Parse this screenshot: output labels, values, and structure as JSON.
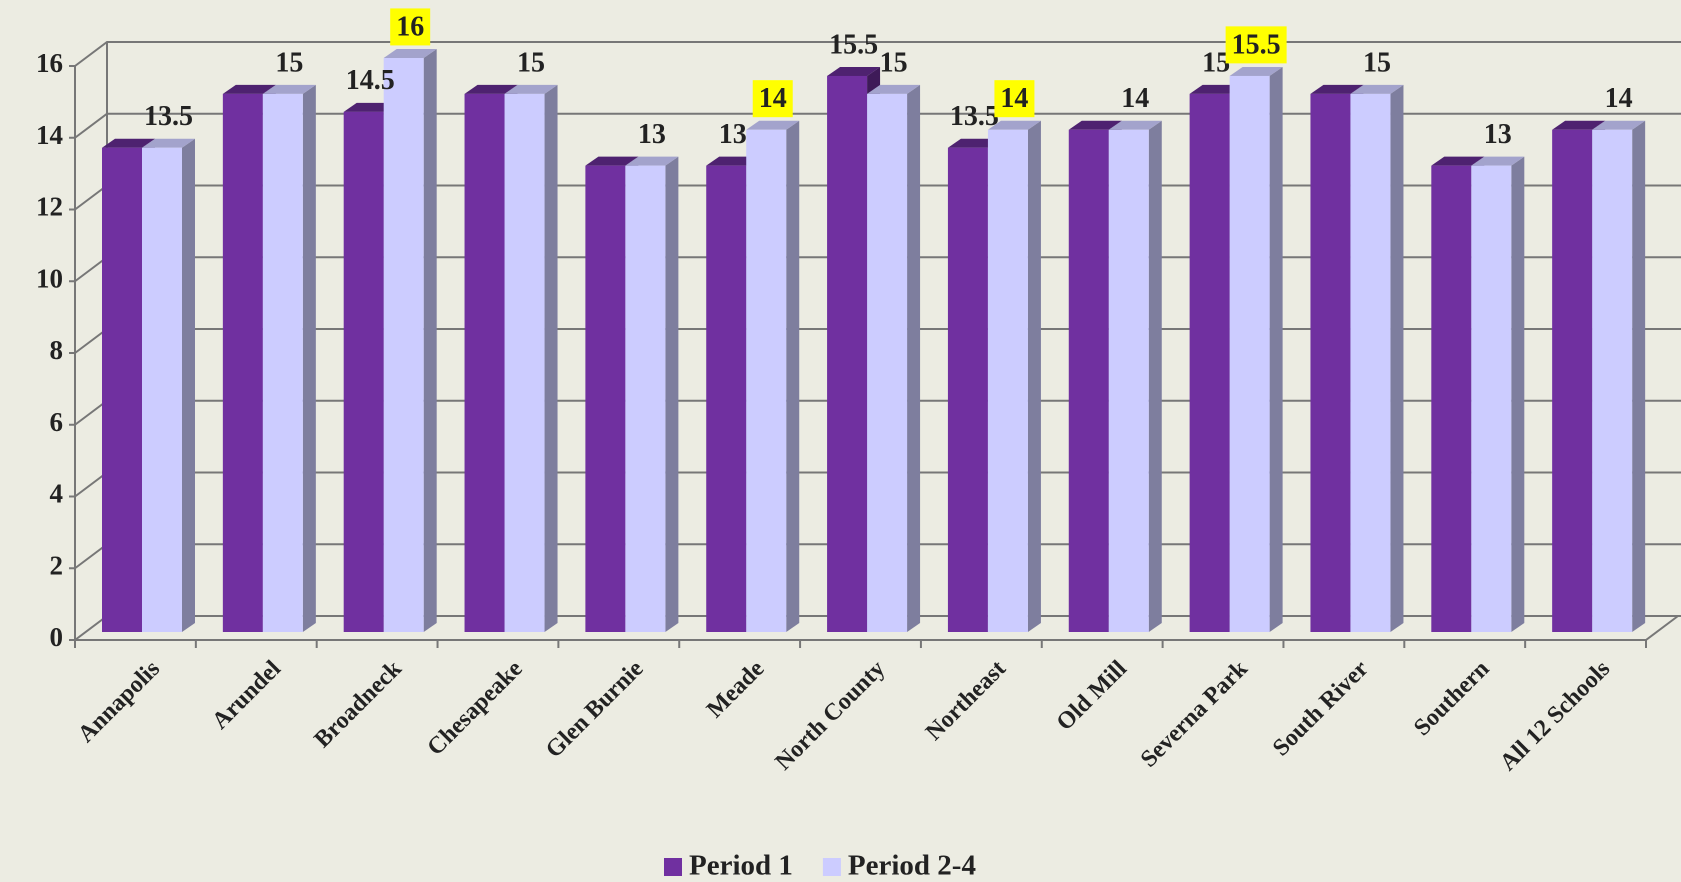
{
  "chart_data": {
    "type": "bar3d",
    "categories": [
      "Annapolis",
      "Arundel",
      "Broadneck",
      "Chesapeake",
      "Glen Burnie",
      "Meade",
      "North County",
      "Northeast",
      "Old Mill",
      "Severna Park",
      "South River",
      "Southern",
      "All 12 Schools"
    ],
    "series": [
      {
        "name": "Period 1",
        "color": "#7030a0",
        "values": [
          13.5,
          15,
          14.5,
          15,
          13,
          13,
          15.5,
          13.5,
          14,
          15,
          15,
          13,
          14
        ]
      },
      {
        "name": "Period 2-4",
        "color": "#ccccff",
        "values": [
          13.5,
          15,
          16,
          15,
          13,
          14,
          15,
          14,
          14,
          15.5,
          15,
          13,
          14
        ]
      }
    ],
    "ylim": [
      0,
      16
    ],
    "yticks": [
      0,
      2,
      4,
      6,
      8,
      10,
      12,
      14,
      16
    ],
    "grid": true,
    "legend": "bottom",
    "highlight_color": "#ffff00"
  }
}
